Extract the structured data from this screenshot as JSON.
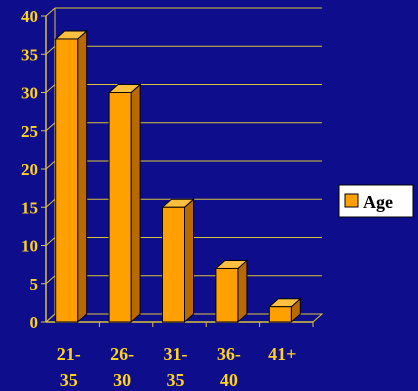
{
  "chart_data": {
    "type": "bar",
    "categories": [
      [
        "21-",
        "35"
      ],
      [
        "26-",
        "30"
      ],
      [
        "31-",
        "35"
      ],
      [
        "36-",
        "40"
      ],
      [
        "41+"
      ]
    ],
    "series": [
      {
        "name": "Age",
        "values": [
          37,
          30,
          15,
          7,
          2
        ]
      }
    ],
    "ylim": [
      0,
      40
    ],
    "yticks": [
      "0",
      "5",
      "10",
      "15",
      "20",
      "25",
      "30",
      "35",
      "40"
    ],
    "grid": true,
    "legend_position": "right",
    "title": "",
    "xlabel": "",
    "ylabel": ""
  },
  "colors": {
    "background": "#0e0e8c",
    "bar_front": "#ffa000",
    "bar_side": "#b86a00",
    "bar_top": "#ffc040",
    "outline": "#000000",
    "grid": "#d8c23a",
    "text": "#ffd21e",
    "legend_bg": "#ffffff"
  }
}
